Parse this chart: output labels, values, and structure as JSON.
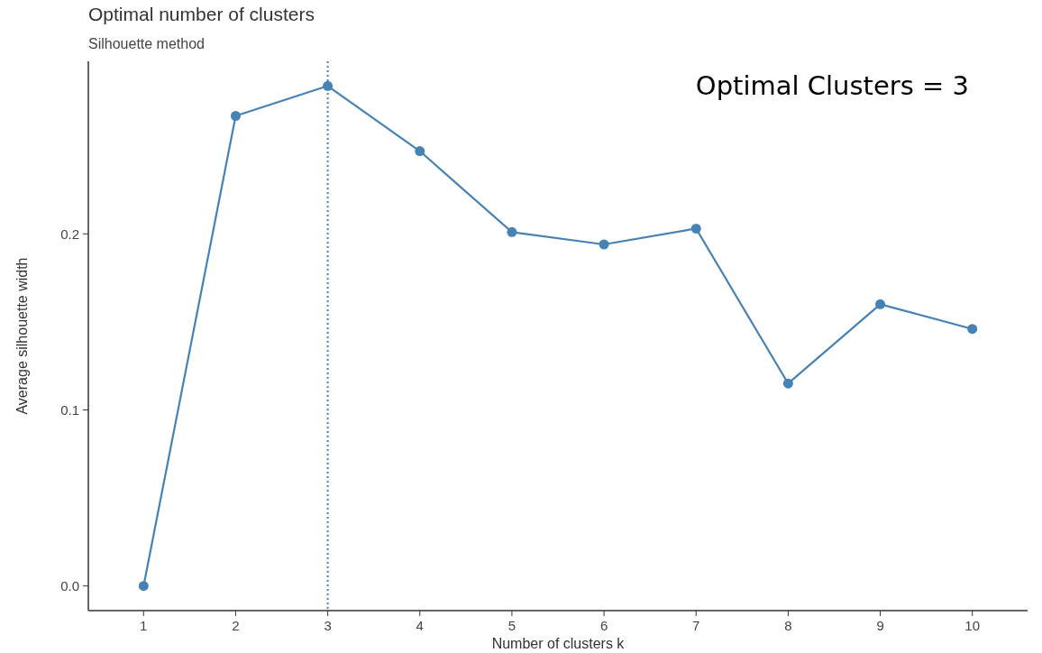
{
  "chart_data": {
    "type": "line",
    "title": "Optimal number of clusters",
    "subtitle": "Silhouette method",
    "xlabel": "Number of clusters k",
    "ylabel": "Average silhouette width",
    "x": [
      1,
      2,
      3,
      4,
      5,
      6,
      7,
      8,
      9,
      10
    ],
    "series": [
      {
        "color": "#4682b4",
        "values": [
          0,
          0.267,
          0.284,
          0.247,
          0.201,
          0.194,
          0.203,
          0.115,
          0.16,
          0.146
        ]
      }
    ],
    "xlim": [
      0.4,
      10.6
    ],
    "xticks": [
      1,
      2,
      3,
      4,
      5,
      6,
      7,
      8,
      9,
      10
    ],
    "ylim": [
      -0.014,
      0.298
    ],
    "yticks": [
      {
        "value": 0,
        "label": "0.0"
      },
      {
        "value": 0.1,
        "label": "0.1"
      },
      {
        "value": 0.2,
        "label": "0.2"
      }
    ],
    "ref_lines": [
      {
        "axis": "x",
        "value": 3,
        "color": "#4682b4",
        "line_style": "dotted"
      }
    ],
    "annotations": [
      "Optimal Clusters = 3"
    ],
    "grid": false,
    "marker": "circle",
    "line_style": "solid"
  }
}
